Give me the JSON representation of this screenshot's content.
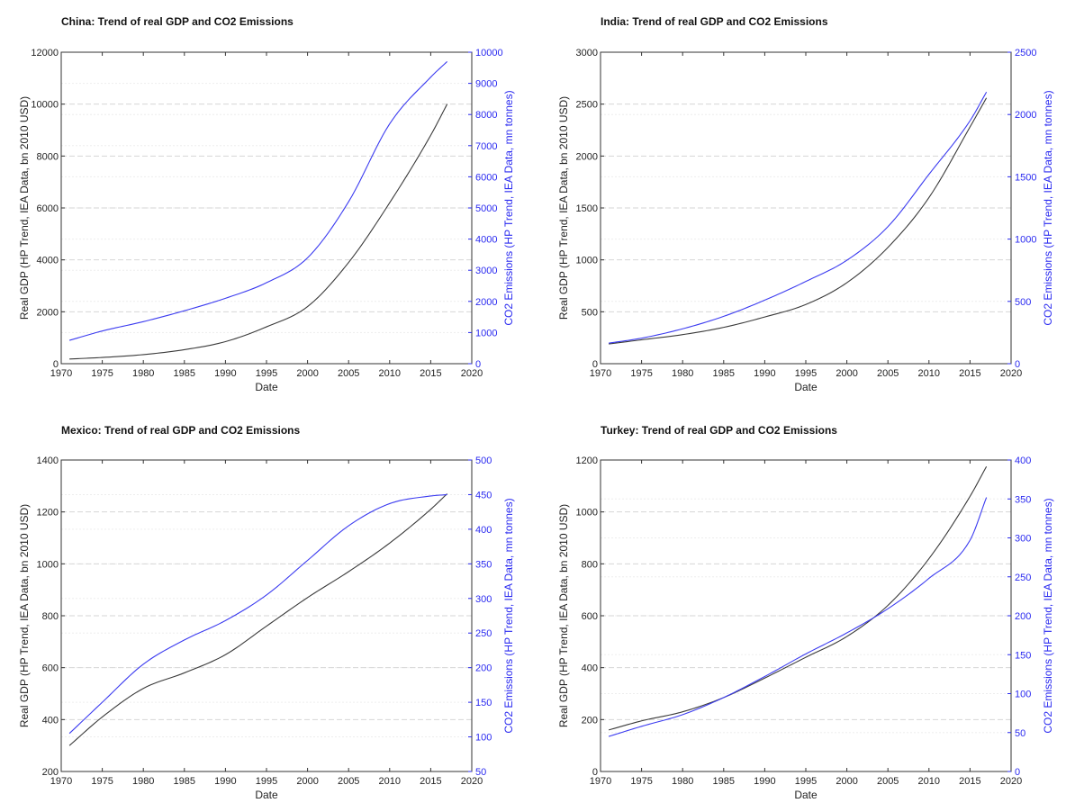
{
  "colors": {
    "gdp_line": "#3a3a3a",
    "co2_line": "#3b3bf0",
    "right_axis": "#2a2af0",
    "major_grid": "#d6d6d6",
    "minor_grid": "#ededed"
  },
  "chart_data": [
    {
      "type": "line",
      "title": "China: Trend of real GDP and CO2 Emissions",
      "xlabel": "Date",
      "ylabel": "Real GDP (HP Trend, IEA Data, bn 2010 USD)",
      "y2label": "CO2 Emissions (HP Trend, IEA Data, mn tonnes)",
      "xlim": [
        1970,
        2020
      ],
      "ylim": [
        0,
        12000
      ],
      "y2lim": [
        0,
        10000
      ],
      "xticks": [
        1970,
        1975,
        1980,
        1985,
        1990,
        1995,
        2000,
        2005,
        2010,
        2015,
        2020
      ],
      "yticks": [
        0,
        2000,
        4000,
        6000,
        8000,
        10000,
        12000
      ],
      "y2ticks": [
        0,
        1000,
        2000,
        3000,
        4000,
        5000,
        6000,
        7000,
        8000,
        9000,
        10000
      ],
      "grid": true,
      "x": [
        1971,
        1975,
        1980,
        1985,
        1990,
        1995,
        2000,
        2005,
        2010,
        2015,
        2017
      ],
      "series": [
        {
          "axis": "left",
          "values": [
            180,
            240,
            350,
            540,
            850,
            1420,
            2200,
            3900,
            6200,
            8800,
            10000
          ]
        },
        {
          "axis": "right",
          "values": [
            750,
            1050,
            1350,
            1700,
            2100,
            2600,
            3400,
            5200,
            7700,
            9200,
            9700
          ]
        }
      ]
    },
    {
      "type": "line",
      "title": "India: Trend of real GDP and CO2 Emissions",
      "xlabel": "Date",
      "ylabel": "Real GDP (HP Trend, IEA Data, bn 2010 USD)",
      "y2label": "CO2 Emissions (HP Trend, IEA Data, mn tonnes)",
      "xlim": [
        1970,
        2020
      ],
      "ylim": [
        0,
        3000
      ],
      "y2lim": [
        0,
        2500
      ],
      "xticks": [
        1970,
        1975,
        1980,
        1985,
        1990,
        1995,
        2000,
        2005,
        2010,
        2015,
        2020
      ],
      "yticks": [
        0,
        500,
        1000,
        1500,
        2000,
        2500,
        3000
      ],
      "y2ticks": [
        0,
        500,
        1000,
        1500,
        2000,
        2500
      ],
      "grid": true,
      "x": [
        1971,
        1975,
        1980,
        1985,
        1990,
        1995,
        2000,
        2005,
        2010,
        2015,
        2017
      ],
      "series": [
        {
          "axis": "left",
          "values": [
            190,
            230,
            280,
            350,
            450,
            570,
            780,
            1120,
            1600,
            2280,
            2560
          ]
        },
        {
          "axis": "right",
          "values": [
            165,
            205,
            280,
            380,
            510,
            660,
            830,
            1100,
            1520,
            1950,
            2180
          ]
        }
      ]
    },
    {
      "type": "line",
      "title": "Mexico: Trend of real GDP and CO2 Emissions",
      "xlabel": "Date",
      "ylabel": "Real GDP (HP Trend, IEA Data, bn 2010 USD)",
      "y2label": "CO2 Emissions (HP Trend, IEA Data, mn tonnes)",
      "xlim": [
        1970,
        2020
      ],
      "ylim": [
        200,
        1400
      ],
      "y2lim": [
        50,
        500
      ],
      "xticks": [
        1970,
        1975,
        1980,
        1985,
        1990,
        1995,
        2000,
        2005,
        2010,
        2015,
        2020
      ],
      "yticks": [
        200,
        400,
        600,
        800,
        1000,
        1200,
        1400
      ],
      "y2ticks": [
        50,
        100,
        150,
        200,
        250,
        300,
        350,
        400,
        450,
        500
      ],
      "grid": true,
      "x": [
        1971,
        1975,
        1980,
        1985,
        1990,
        1995,
        2000,
        2005,
        2010,
        2015,
        2017
      ],
      "series": [
        {
          "axis": "left",
          "values": [
            300,
            410,
            520,
            580,
            650,
            760,
            870,
            970,
            1080,
            1210,
            1270
          ]
        },
        {
          "axis": "right",
          "values": [
            105,
            150,
            205,
            240,
            268,
            305,
            355,
            405,
            437,
            448,
            450
          ]
        }
      ]
    },
    {
      "type": "line",
      "title": "Turkey: Trend of real GDP and CO2 Emissions",
      "xlabel": "Date",
      "ylabel": "Real GDP (HP Trend, IEA Data, bn 2010 USD)",
      "y2label": "CO2 Emissions (HP Trend, IEA Data, mn tonnes)",
      "xlim": [
        1970,
        2020
      ],
      "ylim": [
        0,
        1200
      ],
      "y2lim": [
        0,
        400
      ],
      "xticks": [
        1970,
        1975,
        1980,
        1985,
        1990,
        1995,
        2000,
        2005,
        2010,
        2015,
        2020
      ],
      "yticks": [
        0,
        200,
        400,
        600,
        800,
        1000,
        1200
      ],
      "y2ticks": [
        0,
        50,
        100,
        150,
        200,
        250,
        300,
        350,
        400
      ],
      "grid": true,
      "x": [
        1971,
        1975,
        1980,
        1985,
        1990,
        1995,
        2000,
        2005,
        2010,
        2015,
        2017
      ],
      "series": [
        {
          "axis": "left",
          "values": [
            160,
            195,
            230,
            285,
            360,
            440,
            520,
            640,
            820,
            1060,
            1175
          ]
        },
        {
          "axis": "right",
          "values": [
            45,
            58,
            73,
            95,
            122,
            151,
            178,
            209,
            248,
            297,
            352
          ]
        }
      ]
    }
  ]
}
